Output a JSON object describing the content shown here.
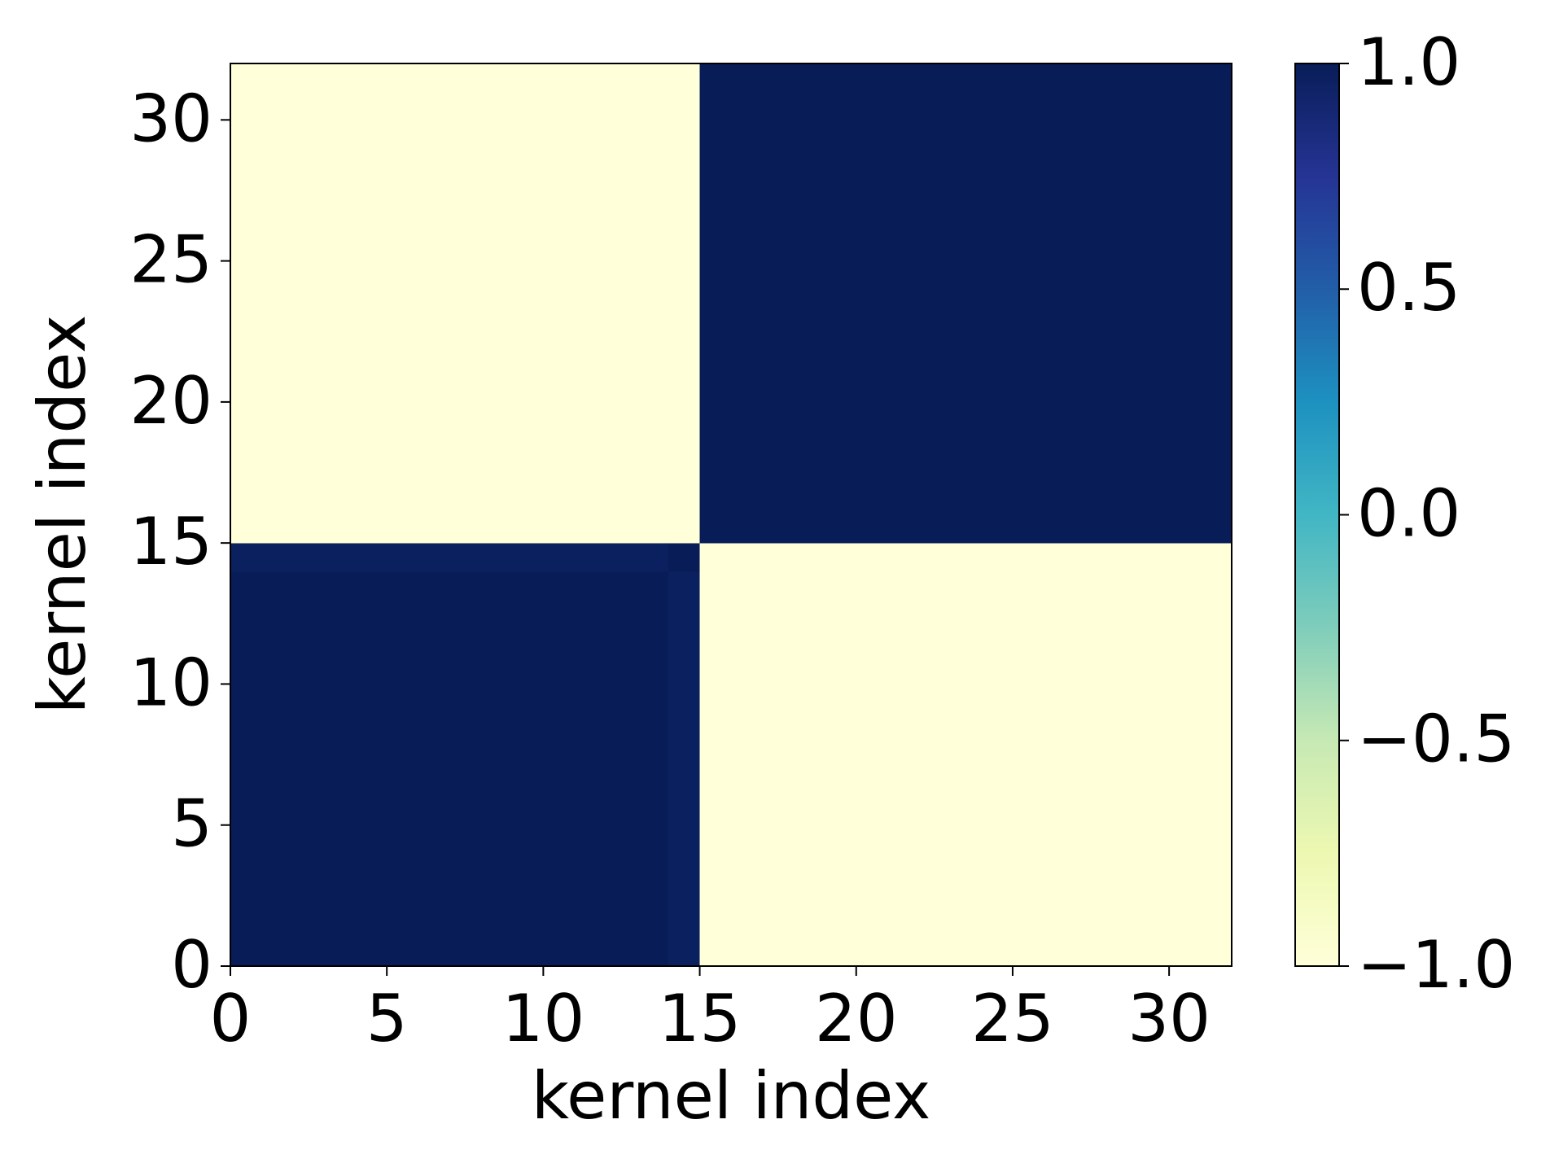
{
  "chart_data": {
    "type": "heatmap",
    "xlabel": "kernel index",
    "ylabel": "kernel index",
    "xlim": [
      0,
      32
    ],
    "ylim": [
      0,
      32
    ],
    "xticks": [
      0,
      5,
      10,
      15,
      20,
      25,
      30
    ],
    "yticks": [
      0,
      5,
      10,
      15,
      20,
      25,
      30
    ],
    "clim": [
      -1,
      1
    ],
    "colorbar_ticks": [
      {
        "value": -1,
        "label": "−1.0"
      },
      {
        "value": -0.5,
        "label": "−0.5"
      },
      {
        "value": 0,
        "label": "0.0"
      },
      {
        "value": 0.5,
        "label": "0.5"
      },
      {
        "value": 1,
        "label": "1.0"
      }
    ],
    "colormap": [
      "#ffffd9",
      "#edf8b1",
      "#c7e9b4",
      "#7fcdbb",
      "#41b6c4",
      "#1d91c0",
      "#225ea8",
      "#253494",
      "#081d58"
    ],
    "z": [
      [
        1,
        1,
        1,
        1,
        1,
        1,
        1,
        1,
        1,
        1,
        1,
        1,
        1,
        1,
        0.97,
        -1,
        -1,
        -1,
        -1,
        -1,
        -1,
        -1,
        -1,
        -1,
        -1,
        -1,
        -1,
        -1,
        -1,
        -1,
        -1,
        -1
      ],
      [
        1,
        1,
        1,
        1,
        1,
        1,
        1,
        1,
        1,
        1,
        1,
        1,
        1,
        1,
        0.97,
        -1,
        -1,
        -1,
        -1,
        -1,
        -1,
        -1,
        -1,
        -1,
        -1,
        -1,
        -1,
        -1,
        -1,
        -1,
        -1,
        -1
      ],
      [
        1,
        1,
        1,
        1,
        1,
        1,
        1,
        1,
        1,
        1,
        1,
        1,
        1,
        1,
        0.97,
        -1,
        -1,
        -1,
        -1,
        -1,
        -1,
        -1,
        -1,
        -1,
        -1,
        -1,
        -1,
        -1,
        -1,
        -1,
        -1,
        -1
      ],
      [
        1,
        1,
        1,
        1,
        1,
        1,
        1,
        1,
        1,
        1,
        1,
        1,
        1,
        1,
        0.97,
        -1,
        -1,
        -1,
        -1,
        -1,
        -1,
        -1,
        -1,
        -1,
        -1,
        -1,
        -1,
        -1,
        -1,
        -1,
        -1,
        -1
      ],
      [
        1,
        1,
        1,
        1,
        1,
        1,
        1,
        1,
        1,
        1,
        1,
        1,
        1,
        1,
        0.97,
        -1,
        -1,
        -1,
        -1,
        -1,
        -1,
        -1,
        -1,
        -1,
        -1,
        -1,
        -1,
        -1,
        -1,
        -1,
        -1,
        -1
      ],
      [
        1,
        1,
        1,
        1,
        1,
        1,
        1,
        1,
        1,
        1,
        1,
        1,
        1,
        1,
        0.97,
        -1,
        -1,
        -1,
        -1,
        -1,
        -1,
        -1,
        -1,
        -1,
        -1,
        -1,
        -1,
        -1,
        -1,
        -1,
        -1,
        -1
      ],
      [
        1,
        1,
        1,
        1,
        1,
        1,
        1,
        1,
        1,
        1,
        1,
        1,
        1,
        1,
        0.97,
        -1,
        -1,
        -1,
        -1,
        -1,
        -1,
        -1,
        -1,
        -1,
        -1,
        -1,
        -1,
        -1,
        -1,
        -1,
        -1,
        -1
      ],
      [
        1,
        1,
        1,
        1,
        1,
        1,
        1,
        1,
        1,
        1,
        1,
        1,
        1,
        1,
        0.97,
        -1,
        -1,
        -1,
        -1,
        -1,
        -1,
        -1,
        -1,
        -1,
        -1,
        -1,
        -1,
        -1,
        -1,
        -1,
        -1,
        -1
      ],
      [
        1,
        1,
        1,
        1,
        1,
        1,
        1,
        1,
        1,
        1,
        1,
        1,
        1,
        1,
        0.97,
        -1,
        -1,
        -1,
        -1,
        -1,
        -1,
        -1,
        -1,
        -1,
        -1,
        -1,
        -1,
        -1,
        -1,
        -1,
        -1,
        -1
      ],
      [
        1,
        1,
        1,
        1,
        1,
        1,
        1,
        1,
        1,
        1,
        1,
        1,
        1,
        1,
        0.97,
        -1,
        -1,
        -1,
        -1,
        -1,
        -1,
        -1,
        -1,
        -1,
        -1,
        -1,
        -1,
        -1,
        -1,
        -1,
        -1,
        -1
      ],
      [
        1,
        1,
        1,
        1,
        1,
        1,
        1,
        1,
        1,
        1,
        1,
        1,
        1,
        1,
        0.97,
        -1,
        -1,
        -1,
        -1,
        -1,
        -1,
        -1,
        -1,
        -1,
        -1,
        -1,
        -1,
        -1,
        -1,
        -1,
        -1,
        -1
      ],
      [
        1,
        1,
        1,
        1,
        1,
        1,
        1,
        1,
        1,
        1,
        1,
        1,
        1,
        1,
        0.97,
        -1,
        -1,
        -1,
        -1,
        -1,
        -1,
        -1,
        -1,
        -1,
        -1,
        -1,
        -1,
        -1,
        -1,
        -1,
        -1,
        -1
      ],
      [
        1,
        1,
        1,
        1,
        1,
        1,
        1,
        1,
        1,
        1,
        1,
        1,
        1,
        1,
        0.97,
        -1,
        -1,
        -1,
        -1,
        -1,
        -1,
        -1,
        -1,
        -1,
        -1,
        -1,
        -1,
        -1,
        -1,
        -1,
        -1,
        -1
      ],
      [
        1,
        1,
        1,
        1,
        1,
        1,
        1,
        1,
        1,
        1,
        1,
        1,
        1,
        1,
        0.97,
        -1,
        -1,
        -1,
        -1,
        -1,
        -1,
        -1,
        -1,
        -1,
        -1,
        -1,
        -1,
        -1,
        -1,
        -1,
        -1,
        -1
      ],
      [
        0.97,
        0.97,
        0.97,
        0.97,
        0.97,
        0.97,
        0.97,
        0.97,
        0.97,
        0.97,
        0.97,
        0.97,
        0.97,
        0.97,
        1,
        -1,
        -1,
        -1,
        -1,
        -1,
        -1,
        -1,
        -1,
        -1,
        -1,
        -1,
        -1,
        -1,
        -1,
        -1,
        -1,
        -1
      ],
      [
        -1,
        -1,
        -1,
        -1,
        -1,
        -1,
        -1,
        -1,
        -1,
        -1,
        -1,
        -1,
        -1,
        -1,
        -1,
        1,
        1,
        1,
        1,
        1,
        1,
        1,
        1,
        1,
        1,
        1,
        1,
        1,
        1,
        1,
        1,
        1
      ],
      [
        -1,
        -1,
        -1,
        -1,
        -1,
        -1,
        -1,
        -1,
        -1,
        -1,
        -1,
        -1,
        -1,
        -1,
        -1,
        1,
        1,
        1,
        1,
        1,
        1,
        1,
        1,
        1,
        1,
        1,
        1,
        1,
        1,
        1,
        1,
        1
      ],
      [
        -1,
        -1,
        -1,
        -1,
        -1,
        -1,
        -1,
        -1,
        -1,
        -1,
        -1,
        -1,
        -1,
        -1,
        -1,
        1,
        1,
        1,
        1,
        1,
        1,
        1,
        1,
        1,
        1,
        1,
        1,
        1,
        1,
        1,
        1,
        1
      ],
      [
        -1,
        -1,
        -1,
        -1,
        -1,
        -1,
        -1,
        -1,
        -1,
        -1,
        -1,
        -1,
        -1,
        -1,
        -1,
        1,
        1,
        1,
        1,
        1,
        1,
        1,
        1,
        1,
        1,
        1,
        1,
        1,
        1,
        1,
        1,
        1
      ],
      [
        -1,
        -1,
        -1,
        -1,
        -1,
        -1,
        -1,
        -1,
        -1,
        -1,
        -1,
        -1,
        -1,
        -1,
        -1,
        1,
        1,
        1,
        1,
        1,
        1,
        1,
        1,
        1,
        1,
        1,
        1,
        1,
        1,
        1,
        1,
        1
      ],
      [
        -1,
        -1,
        -1,
        -1,
        -1,
        -1,
        -1,
        -1,
        -1,
        -1,
        -1,
        -1,
        -1,
        -1,
        -1,
        1,
        1,
        1,
        1,
        1,
        1,
        1,
        1,
        1,
        1,
        1,
        1,
        1,
        1,
        1,
        1,
        1
      ],
      [
        -1,
        -1,
        -1,
        -1,
        -1,
        -1,
        -1,
        -1,
        -1,
        -1,
        -1,
        -1,
        -1,
        -1,
        -1,
        1,
        1,
        1,
        1,
        1,
        1,
        1,
        1,
        1,
        1,
        1,
        1,
        1,
        1,
        1,
        1,
        1
      ],
      [
        -1,
        -1,
        -1,
        -1,
        -1,
        -1,
        -1,
        -1,
        -1,
        -1,
        -1,
        -1,
        -1,
        -1,
        -1,
        1,
        1,
        1,
        1,
        1,
        1,
        1,
        1,
        1,
        1,
        1,
        1,
        1,
        1,
        1,
        1,
        1
      ],
      [
        -1,
        -1,
        -1,
        -1,
        -1,
        -1,
        -1,
        -1,
        -1,
        -1,
        -1,
        -1,
        -1,
        -1,
        -1,
        1,
        1,
        1,
        1,
        1,
        1,
        1,
        1,
        1,
        1,
        1,
        1,
        1,
        1,
        1,
        1,
        1
      ],
      [
        -1,
        -1,
        -1,
        -1,
        -1,
        -1,
        -1,
        -1,
        -1,
        -1,
        -1,
        -1,
        -1,
        -1,
        -1,
        1,
        1,
        1,
        1,
        1,
        1,
        1,
        1,
        1,
        1,
        1,
        1,
        1,
        1,
        1,
        1,
        1
      ],
      [
        -1,
        -1,
        -1,
        -1,
        -1,
        -1,
        -1,
        -1,
        -1,
        -1,
        -1,
        -1,
        -1,
        -1,
        -1,
        1,
        1,
        1,
        1,
        1,
        1,
        1,
        1,
        1,
        1,
        1,
        1,
        1,
        1,
        1,
        1,
        1
      ],
      [
        -1,
        -1,
        -1,
        -1,
        -1,
        -1,
        -1,
        -1,
        -1,
        -1,
        -1,
        -1,
        -1,
        -1,
        -1,
        1,
        1,
        1,
        1,
        1,
        1,
        1,
        1,
        1,
        1,
        1,
        1,
        1,
        1,
        1,
        1,
        1
      ],
      [
        -1,
        -1,
        -1,
        -1,
        -1,
        -1,
        -1,
        -1,
        -1,
        -1,
        -1,
        -1,
        -1,
        -1,
        -1,
        1,
        1,
        1,
        1,
        1,
        1,
        1,
        1,
        1,
        1,
        1,
        1,
        1,
        1,
        1,
        1,
        1
      ],
      [
        -1,
        -1,
        -1,
        -1,
        -1,
        -1,
        -1,
        -1,
        -1,
        -1,
        -1,
        -1,
        -1,
        -1,
        -1,
        1,
        1,
        1,
        1,
        1,
        1,
        1,
        1,
        1,
        1,
        1,
        1,
        1,
        1,
        1,
        1,
        1
      ],
      [
        -1,
        -1,
        -1,
        -1,
        -1,
        -1,
        -1,
        -1,
        -1,
        -1,
        -1,
        -1,
        -1,
        -1,
        -1,
        1,
        1,
        1,
        1,
        1,
        1,
        1,
        1,
        1,
        1,
        1,
        1,
        1,
        1,
        1,
        1,
        1
      ],
      [
        -1,
        -1,
        -1,
        -1,
        -1,
        -1,
        -1,
        -1,
        -1,
        -1,
        -1,
        -1,
        -1,
        -1,
        -1,
        1,
        1,
        1,
        1,
        1,
        1,
        1,
        1,
        1,
        1,
        1,
        1,
        1,
        1,
        1,
        1,
        1
      ],
      [
        -1,
        -1,
        -1,
        -1,
        -1,
        -1,
        -1,
        -1,
        -1,
        -1,
        -1,
        -1,
        -1,
        -1,
        -1,
        1,
        1,
        1,
        1,
        1,
        1,
        1,
        1,
        1,
        1,
        1,
        1,
        1,
        1,
        1,
        1,
        1
      ]
    ]
  }
}
